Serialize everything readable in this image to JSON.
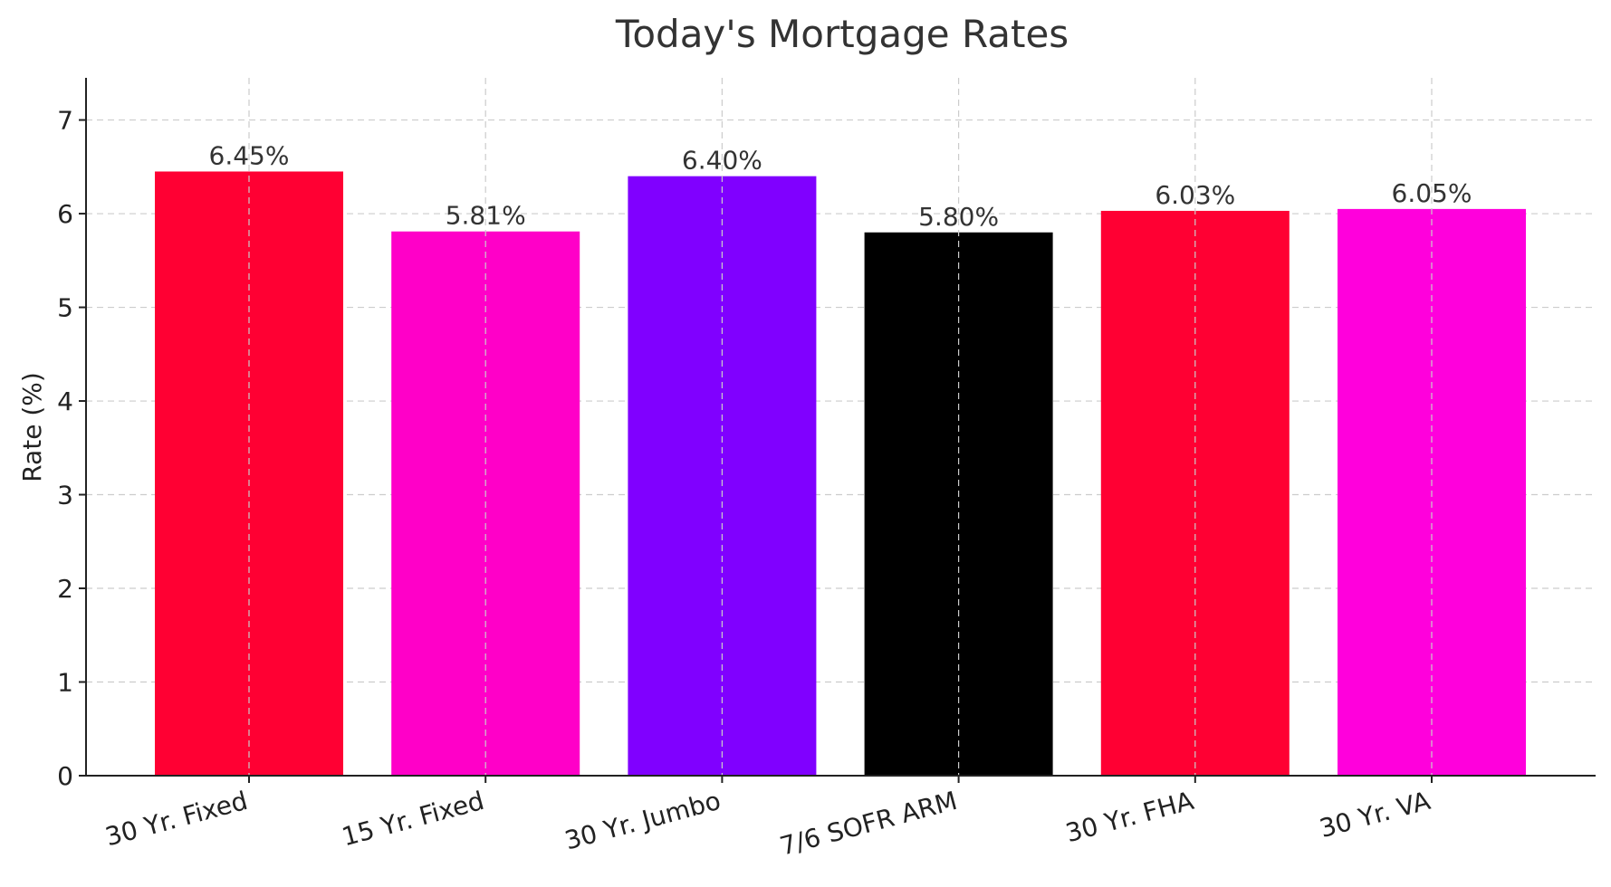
{
  "chart_data": {
    "type": "bar",
    "title": "Today's Mortgage Rates",
    "xlabel": "",
    "ylabel": "Rate (%)",
    "categories": [
      "30 Yr. Fixed",
      "15 Yr. Fixed",
      "30 Yr. Jumbo",
      "7/6 SOFR ARM",
      "30 Yr. FHA",
      "30 Yr. VA"
    ],
    "values": [
      6.45,
      5.81,
      6.4,
      5.8,
      6.03,
      6.05
    ],
    "value_labels": [
      "6.45%",
      "5.81%",
      "6.40%",
      "5.80%",
      "6.03%",
      "6.05%"
    ],
    "colors": [
      "#FF0033",
      "#FF00C8",
      "#8000FF",
      "#000000",
      "#FF0033",
      "#FF00DC"
    ],
    "ylim": [
      0,
      7.45
    ],
    "yticks": [
      0,
      1,
      2,
      3,
      4,
      5,
      6,
      7
    ],
    "grid": true,
    "x_tick_rotation": "slanted"
  }
}
